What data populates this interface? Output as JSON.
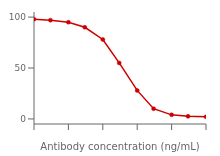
{
  "chart_data": {
    "type": "line",
    "xlabel": "Antibody concentration (ng/mL)",
    "x": [
      0.001,
      0.003,
      0.01,
      0.03,
      0.1,
      0.3,
      1.0,
      3.0,
      10.0,
      30.0,
      100.0
    ],
    "values": [
      98,
      97,
      95,
      90,
      78,
      55,
      28,
      10,
      4,
      2.5,
      2
    ],
    "color": "#cc0000",
    "marker": "circle",
    "log": "x",
    "xlim": [
      0.001,
      100
    ],
    "xticks": [
      0.001,
      0.01,
      0.1,
      1,
      10,
      100
    ],
    "ylim": [
      -5,
      105
    ],
    "yticks": [
      0,
      50,
      100
    ],
    "grid": false,
    "tick_labels": "y"
  }
}
